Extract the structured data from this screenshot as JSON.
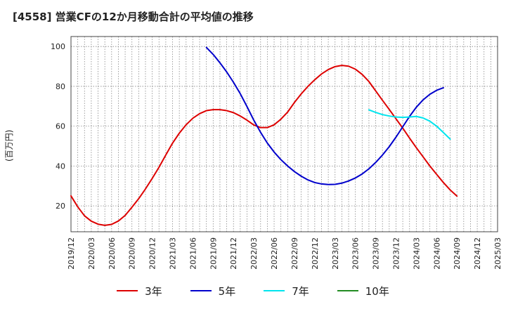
{
  "title": "[4558]  営業CFの12か月移動合計の平均値の推移",
  "chart_data": {
    "type": "line",
    "ylabel": "(百万円)",
    "ylim": [
      7,
      105
    ],
    "yticks": [
      20,
      40,
      60,
      80,
      100
    ],
    "grid": true,
    "legend_position": "bottom",
    "x_ticks": [
      "2019/12",
      "2020/03",
      "2020/06",
      "2020/09",
      "2020/12",
      "2021/03",
      "2021/06",
      "2021/09",
      "2021/12",
      "2022/03",
      "2022/06",
      "2022/09",
      "2022/12",
      "2023/03",
      "2023/06",
      "2023/09",
      "2023/12",
      "2024/03",
      "2024/06",
      "2024/09",
      "2024/12",
      "2025/03"
    ],
    "series": [
      {
        "name": "3年",
        "color": "#dd0000",
        "points": [
          [
            "2019/12",
            25
          ],
          [
            "2020/01",
            19.5
          ],
          [
            "2020/02",
            15
          ],
          [
            "2020/03",
            12.3
          ],
          [
            "2020/04",
            10.8
          ],
          [
            "2020/05",
            10.2
          ],
          [
            "2020/06",
            10.7
          ],
          [
            "2020/07",
            12.4
          ],
          [
            "2020/08",
            15.2
          ],
          [
            "2020/09",
            19.3
          ],
          [
            "2020/10",
            23.6
          ],
          [
            "2020/11",
            28.5
          ],
          [
            "2020/12",
            33.8
          ],
          [
            "2021/01",
            39.4
          ],
          [
            "2021/02",
            45.5
          ],
          [
            "2021/03",
            51.5
          ],
          [
            "2021/04",
            56.5
          ],
          [
            "2021/05",
            60.7
          ],
          [
            "2021/06",
            64.0
          ],
          [
            "2021/07",
            66.3
          ],
          [
            "2021/08",
            67.8
          ],
          [
            "2021/09",
            68.3
          ],
          [
            "2021/10",
            68.3
          ],
          [
            "2021/11",
            67.8
          ],
          [
            "2021/12",
            66.8
          ],
          [
            "2022/01",
            65.1
          ],
          [
            "2022/02",
            63.0
          ],
          [
            "2022/03",
            60.6
          ],
          [
            "2022/04",
            59.3
          ],
          [
            "2022/05",
            59.3
          ],
          [
            "2022/06",
            60.7
          ],
          [
            "2022/07",
            63.5
          ],
          [
            "2022/08",
            67.1
          ],
          [
            "2022/09",
            71.9
          ],
          [
            "2022/10",
            76.2
          ],
          [
            "2022/11",
            80.0
          ],
          [
            "2022/12",
            83.3
          ],
          [
            "2023/01",
            86.2
          ],
          [
            "2023/02",
            88.4
          ],
          [
            "2023/03",
            89.9
          ],
          [
            "2023/04",
            90.5
          ],
          [
            "2023/05",
            90.1
          ],
          [
            "2023/06",
            88.6
          ],
          [
            "2023/07",
            86.0
          ],
          [
            "2023/08",
            82.4
          ],
          [
            "2023/09",
            77.7
          ],
          [
            "2023/10",
            73.0
          ],
          [
            "2023/11",
            68.4
          ],
          [
            "2023/12",
            63.7
          ],
          [
            "2024/01",
            59.0
          ],
          [
            "2024/02",
            54.0
          ],
          [
            "2024/03",
            49.2
          ],
          [
            "2024/04",
            44.6
          ],
          [
            "2024/05",
            40.0
          ],
          [
            "2024/06",
            35.8
          ],
          [
            "2024/07",
            31.7
          ],
          [
            "2024/08",
            28.0
          ],
          [
            "2024/09",
            24.9
          ]
        ]
      },
      {
        "name": "5年",
        "color": "#0000cc",
        "points": [
          [
            "2021/08",
            99.5
          ],
          [
            "2021/09",
            96.0
          ],
          [
            "2021/10",
            91.8
          ],
          [
            "2021/11",
            87.2
          ],
          [
            "2021/12",
            82.0
          ],
          [
            "2022/01",
            76.3
          ],
          [
            "2022/02",
            69.8
          ],
          [
            "2022/03",
            63.0
          ],
          [
            "2022/04",
            56.9
          ],
          [
            "2022/05",
            51.5
          ],
          [
            "2022/06",
            47.0
          ],
          [
            "2022/07",
            43.2
          ],
          [
            "2022/08",
            40.0
          ],
          [
            "2022/09",
            37.2
          ],
          [
            "2022/10",
            34.9
          ],
          [
            "2022/11",
            33.0
          ],
          [
            "2022/12",
            31.7
          ],
          [
            "2023/01",
            31.0
          ],
          [
            "2023/02",
            30.7
          ],
          [
            "2023/03",
            30.8
          ],
          [
            "2023/04",
            31.4
          ],
          [
            "2023/05",
            32.5
          ],
          [
            "2023/06",
            34.0
          ],
          [
            "2023/07",
            36.0
          ],
          [
            "2023/08",
            38.6
          ],
          [
            "2023/09",
            41.8
          ],
          [
            "2023/10",
            45.5
          ],
          [
            "2023/11",
            49.7
          ],
          [
            "2023/12",
            54.5
          ],
          [
            "2024/01",
            59.7
          ],
          [
            "2024/02",
            64.9
          ],
          [
            "2024/03",
            69.5
          ],
          [
            "2024/04",
            73.2
          ],
          [
            "2024/05",
            76.0
          ],
          [
            "2024/06",
            78.0
          ],
          [
            "2024/07",
            79.3
          ]
        ]
      },
      {
        "name": "7年",
        "color": "#00e5ee",
        "points": [
          [
            "2023/08",
            68.2
          ],
          [
            "2023/09",
            66.9
          ],
          [
            "2023/10",
            65.8
          ],
          [
            "2023/11",
            65.1
          ],
          [
            "2023/12",
            64.6
          ],
          [
            "2024/01",
            64.4
          ],
          [
            "2024/02",
            64.6
          ],
          [
            "2024/03",
            64.9
          ],
          [
            "2024/04",
            64.1
          ],
          [
            "2024/05",
            62.5
          ],
          [
            "2024/06",
            60.0
          ],
          [
            "2024/07",
            56.8
          ],
          [
            "2024/08",
            53.5
          ]
        ]
      },
      {
        "name": "10年",
        "color": "#228b22",
        "points": []
      }
    ]
  }
}
